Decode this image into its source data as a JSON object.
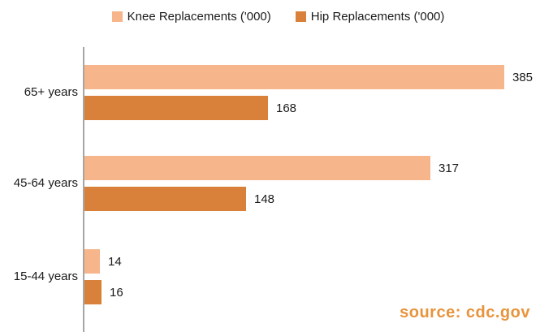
{
  "chart_data": {
    "type": "bar",
    "orientation": "horizontal",
    "title": "",
    "categories": [
      "65+ years",
      "45-64 years",
      "15-44 years"
    ],
    "series": [
      {
        "name": "Knee Replacements ('000)",
        "color": "#f7b58c",
        "values": [
          385,
          317,
          14
        ]
      },
      {
        "name": "Hip Replacements ('000)",
        "color": "#d9813b",
        "values": [
          168,
          148,
          16
        ]
      }
    ],
    "value_labels_shown": true,
    "xlim": [
      0,
      420
    ],
    "grid": false,
    "legend_position": "top",
    "axis_color": "#a6a6a6"
  },
  "legend": {
    "knee_label": "Knee Replacements ('000)",
    "hip_label": "Hip Replacements ('000)"
  },
  "source_note": "source: cdc.gov"
}
